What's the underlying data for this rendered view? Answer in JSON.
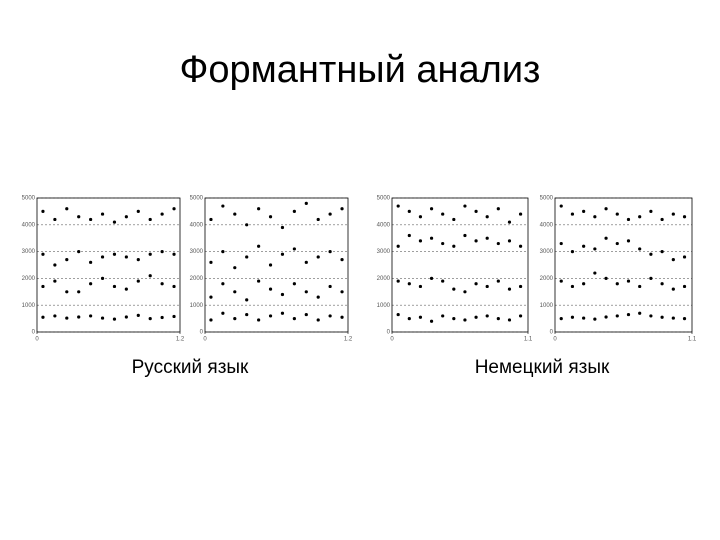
{
  "title": "Формантный анализ",
  "captions": [
    "Русский язык",
    "Немецкий язык"
  ],
  "chart_data": [
    {
      "type": "scatter",
      "color": "#000000",
      "grid": true,
      "xlim": [
        0,
        1.2
      ],
      "xticks": [
        0,
        1.2
      ],
      "ylim": [
        0,
        5000
      ],
      "yticks": [
        0,
        1000,
        2000,
        3000,
        4000,
        5000
      ],
      "x": [
        0.05,
        0.15,
        0.25,
        0.35,
        0.45,
        0.55,
        0.65,
        0.75,
        0.85,
        0.95,
        1.05,
        1.15
      ],
      "series": [
        {
          "color": "#000000",
          "values": [
            550,
            600,
            520,
            560,
            600,
            520,
            480,
            560,
            620,
            500,
            540,
            580
          ]
        },
        {
          "color": "#000000",
          "values": [
            1700,
            1900,
            1500,
            1500,
            1800,
            2000,
            1700,
            1600,
            1900,
            2100,
            1800,
            1700
          ]
        },
        {
          "color": "#000000",
          "values": [
            2900,
            2500,
            2700,
            3000,
            2600,
            2800,
            2900,
            2800,
            2700,
            2900,
            3000,
            2900
          ]
        },
        {
          "color": "#000000",
          "values": [
            4500,
            4200,
            4600,
            4300,
            4200,
            4400,
            4100,
            4300,
            4500,
            4200,
            4400,
            4600
          ]
        }
      ]
    },
    {
      "type": "scatter",
      "color": "#000000",
      "grid": true,
      "xlim": [
        0,
        1.2
      ],
      "xticks": [
        0,
        1.2
      ],
      "ylim": [
        0,
        5000
      ],
      "yticks": [
        0,
        1000,
        2000,
        3000,
        4000,
        5000
      ],
      "x": [
        0.05,
        0.15,
        0.25,
        0.35,
        0.45,
        0.55,
        0.65,
        0.75,
        0.85,
        0.95,
        1.05,
        1.15
      ],
      "series": [
        {
          "color": "#000000",
          "values": [
            450,
            700,
            500,
            650,
            450,
            600,
            700,
            500,
            650,
            450,
            600,
            550
          ]
        },
        {
          "color": "#000000",
          "values": [
            1300,
            1800,
            1500,
            1200,
            1900,
            1600,
            1400,
            1800,
            1500,
            1300,
            1700,
            1500
          ]
        },
        {
          "color": "#000000",
          "values": [
            2600,
            3000,
            2400,
            2800,
            3200,
            2500,
            2900,
            3100,
            2600,
            2800,
            3000,
            2700
          ]
        },
        {
          "color": "#000000",
          "values": [
            4200,
            4700,
            4400,
            4000,
            4600,
            4300,
            3900,
            4500,
            4800,
            4200,
            4400,
            4600
          ]
        }
      ]
    },
    {
      "type": "scatter",
      "color": "#000000",
      "grid": true,
      "xlim": [
        0,
        1.1
      ],
      "xticks": [
        0,
        1.1
      ],
      "ylim": [
        0,
        5000
      ],
      "yticks": [
        0,
        1000,
        2000,
        3000,
        4000,
        5000
      ],
      "x": [
        0.05,
        0.14,
        0.23,
        0.32,
        0.41,
        0.5,
        0.59,
        0.68,
        0.77,
        0.86,
        0.95,
        1.04
      ],
      "series": [
        {
          "color": "#000000",
          "values": [
            650,
            500,
            550,
            400,
            600,
            500,
            450,
            550,
            600,
            500,
            450,
            600
          ]
        },
        {
          "color": "#000000",
          "values": [
            1900,
            1800,
            1700,
            2000,
            1900,
            1600,
            1500,
            1800,
            1700,
            1900,
            1600,
            1700
          ]
        },
        {
          "color": "#000000",
          "values": [
            3200,
            3600,
            3400,
            3500,
            3300,
            3200,
            3600,
            3400,
            3500,
            3300,
            3400,
            3200
          ]
        },
        {
          "color": "#000000",
          "values": [
            4700,
            4500,
            4300,
            4600,
            4400,
            4200,
            4700,
            4500,
            4300,
            4600,
            4100,
            4400
          ]
        }
      ]
    },
    {
      "type": "scatter",
      "color": "#000000",
      "grid": true,
      "xlim": [
        0,
        1.1
      ],
      "xticks": [
        0,
        1.1
      ],
      "ylim": [
        0,
        5000
      ],
      "yticks": [
        0,
        1000,
        2000,
        3000,
        4000,
        5000
      ],
      "x": [
        0.05,
        0.14,
        0.23,
        0.32,
        0.41,
        0.5,
        0.59,
        0.68,
        0.77,
        0.86,
        0.95,
        1.04
      ],
      "series": [
        {
          "color": "#000000",
          "values": [
            500,
            550,
            520,
            480,
            560,
            600,
            650,
            700,
            600,
            550,
            520,
            500
          ]
        },
        {
          "color": "#000000",
          "values": [
            1900,
            1700,
            1800,
            2200,
            2000,
            1800,
            1900,
            1700,
            2000,
            1800,
            1600,
            1700
          ]
        },
        {
          "color": "#000000",
          "values": [
            3300,
            3000,
            3200,
            3100,
            3500,
            3300,
            3400,
            3100,
            2900,
            3000,
            2700,
            2800
          ]
        },
        {
          "color": "#000000",
          "values": [
            4700,
            4400,
            4500,
            4300,
            4600,
            4400,
            4200,
            4300,
            4500,
            4200,
            4400,
            4300
          ]
        }
      ]
    }
  ]
}
